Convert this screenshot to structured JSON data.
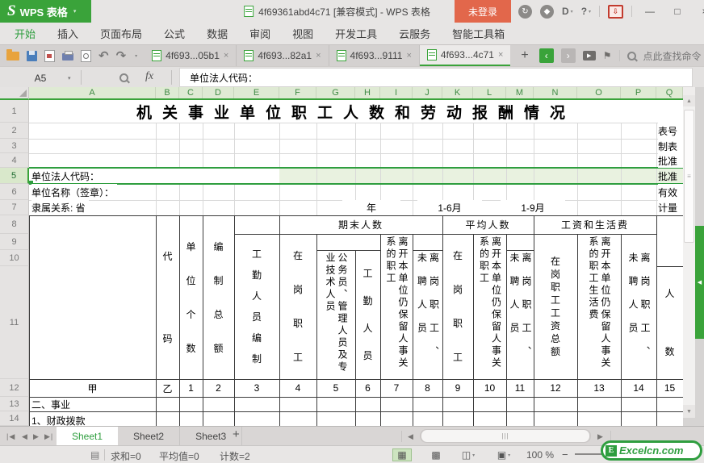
{
  "colors": {
    "accent_green": "#3aa33a",
    "selection_fill": "#e9f2e0",
    "selection_border": "#2f9e3f",
    "login_bg": "#e2674b",
    "header_bg": "#dfead4"
  },
  "icons": {
    "dropdown": "▾",
    "up_arrow": "▲",
    "down_arrow": "▼",
    "left_arrow": "◀",
    "right_arrow": "▶",
    "first": "|◀",
    "last": "▶|",
    "minimize": "—",
    "maximize": "□",
    "close": "×",
    "undo": "↶",
    "redo": "↷",
    "plus": "+",
    "prev_tab": "‹",
    "next_tab": "›",
    "grip_v": "≡",
    "grip_h": "|||",
    "view_normal": "▦",
    "view_break": "▩",
    "view_layout": "◫",
    "view_read": "▣",
    "minus": "−",
    "refresh": "↻",
    "diamond": "◆",
    "skin": "D",
    "help": "?",
    "download": "⇩",
    "flag": "⚑",
    "play": "▶",
    "pane_collapse": "◀",
    "sum_icon": "▤"
  },
  "titlebar": {
    "logo_letter": "S",
    "app_name": "WPS 表格",
    "doc_title": "4f69361abd4c71 [兼容模式] - WPS 表格",
    "login_label": "未登录"
  },
  "menubar": {
    "items": [
      "开始",
      "插入",
      "页面布局",
      "公式",
      "数据",
      "审阅",
      "视图",
      "开发工具",
      "云服务",
      "智能工具箱"
    ],
    "active": "开始"
  },
  "toolbar": {
    "doc_tabs": [
      {
        "label": "4f693...05b1",
        "active": false
      },
      {
        "label": "4f693...82a1",
        "active": false
      },
      {
        "label": "4f693...9111",
        "active": false
      },
      {
        "label": "4f693...4c71",
        "active": true
      }
    ],
    "close_tab_label": "×",
    "find_text": "点此查找命令"
  },
  "formula_bar": {
    "cell_ref": "A5",
    "fx_label": "fx",
    "content": "单位法人代码："
  },
  "grid": {
    "columns": [
      "A",
      "B",
      "C",
      "D",
      "E",
      "F",
      "G",
      "H",
      "I",
      "J",
      "K",
      "L",
      "M",
      "N",
      "O",
      "P",
      "Q"
    ],
    "rows": [
      "1",
      "2",
      "3",
      "4",
      "5",
      "6",
      "7",
      "8",
      "9",
      "10",
      "11",
      "12",
      "13",
      "14"
    ],
    "title": "机关事业单位职工人数和劳动报酬情况",
    "side_labels": [
      "表号",
      "制表",
      "批准",
      "批准",
      "有效",
      "计量"
    ],
    "unit_code_label": "单位法人代码：",
    "unit_name_label": "单位名称（签章）：",
    "affiliation_label": "隶属关系: 省",
    "year_label": "年",
    "period1": "1-6月",
    "period2": "1-9月",
    "header_cells": [
      "代码",
      "单位个数",
      "编制总额",
      "工勤人员编制",
      "期末人数",
      "在岗职工",
      "公务员、管理人员及专业技术人员",
      "工勤人员",
      "离开本单位仍保留人事关系的职工",
      "离岗职工、未聘人员",
      "平均人数",
      "在岗职工",
      "离开本单位仍保留人事关系的职工",
      "离岗职工、未聘人员",
      "工资和生活费",
      "在岗职工工资总额",
      "离开本单位仍保留人事关系的职工生活费",
      "离岗职工、未聘人员",
      "人数"
    ],
    "row12": [
      "甲",
      "乙",
      "1",
      "2",
      "3",
      "4",
      "5",
      "6",
      "7",
      "8",
      "9",
      "10",
      "11",
      "12",
      "13",
      "14",
      "15"
    ],
    "row13": "二、事业",
    "row14": "1、财政拨款"
  },
  "sheet_tabs": {
    "tabs": [
      "Sheet1",
      "Sheet2",
      "Sheet3"
    ],
    "active": "Sheet1",
    "add_label": "+"
  },
  "statusbar": {
    "sum": "求和=0",
    "average": "平均值=0",
    "count": "计数=2",
    "zoom": "100 %"
  },
  "brand": {
    "logo_letter": "E",
    "logo_text": "Excelcn.com"
  }
}
